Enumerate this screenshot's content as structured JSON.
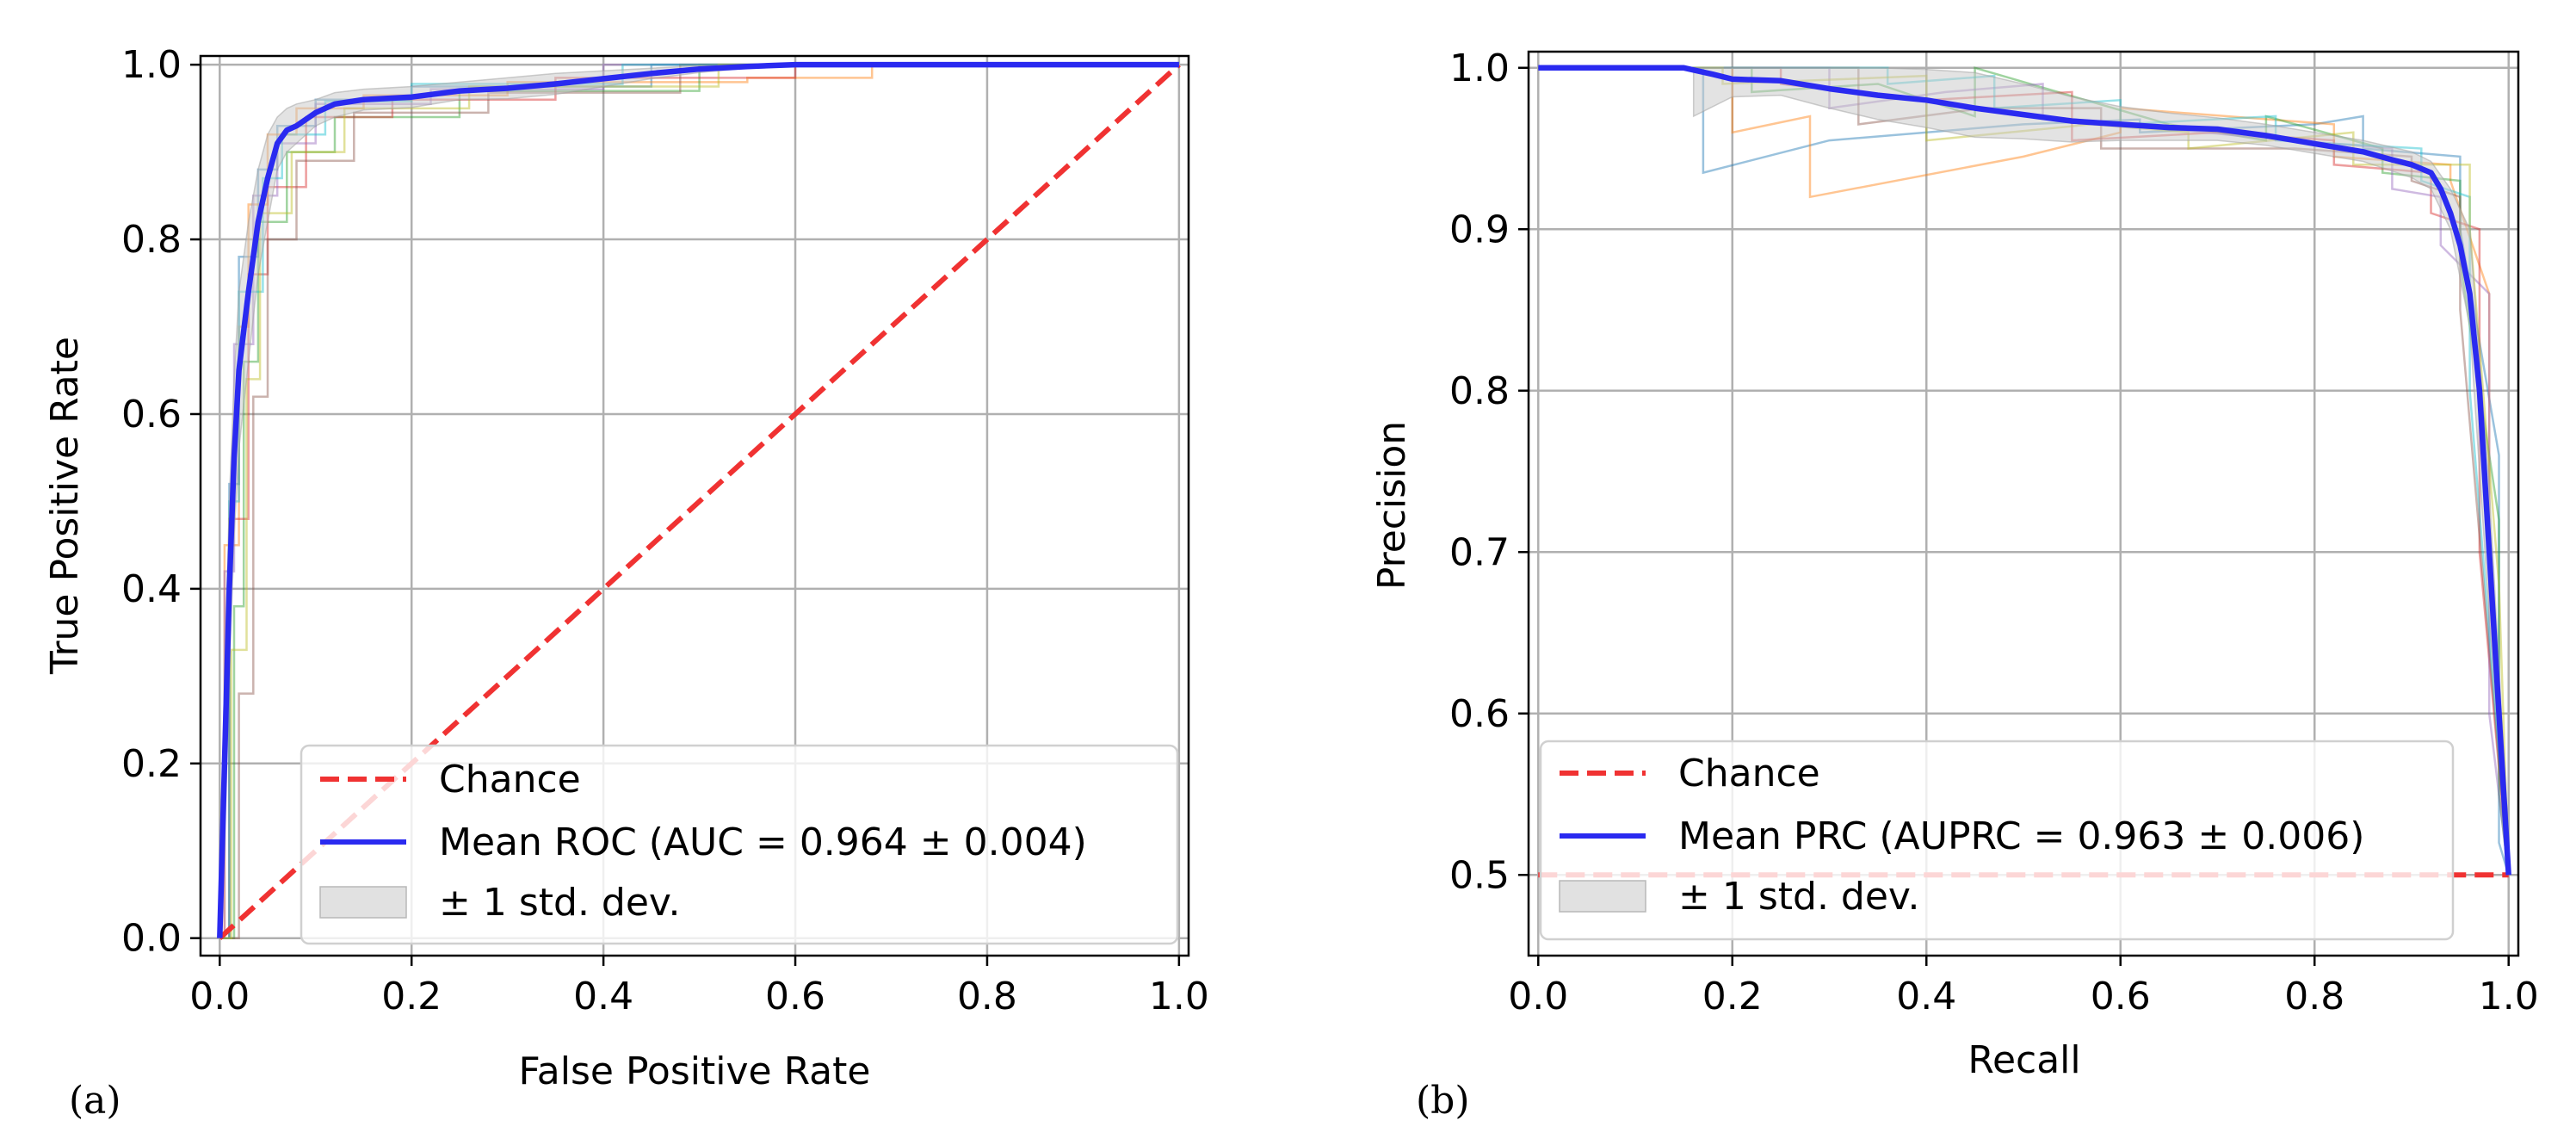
{
  "colors": {
    "chance": "#f03232",
    "mean": "#2a2af0",
    "std_fill": "#c8c8c8",
    "grid": "#b0b0b0",
    "folds": [
      "#1f77b4",
      "#ff7f0e",
      "#2ca02c",
      "#d62728",
      "#9467bd",
      "#8c564b",
      "#17becf",
      "#bcbd22"
    ]
  },
  "chart_data": [
    {
      "panel_label": "(a)",
      "type": "line",
      "title": "",
      "xlabel": "False Positive Rate",
      "ylabel": "True Positive Rate",
      "xlim": [
        -0.02,
        1.01
      ],
      "ylim": [
        -0.02,
        1.01
      ],
      "xticks": [
        0.0,
        0.2,
        0.4,
        0.6,
        0.8,
        1.0
      ],
      "xtick_labels": [
        "0.0",
        "0.2",
        "0.4",
        "0.6",
        "0.8",
        "1.0"
      ],
      "yticks": [
        0.0,
        0.2,
        0.4,
        0.6,
        0.8,
        1.0
      ],
      "ytick_labels": [
        "0.0",
        "0.2",
        "0.4",
        "0.6",
        "0.8",
        "1.0"
      ],
      "grid": true,
      "legend_position": "lower-right",
      "chance": {
        "name": "Chance",
        "x": [
          0,
          1
        ],
        "y": [
          0,
          1
        ]
      },
      "mean": {
        "name": "Mean ROC (AUC = 0.964 ± 0.004)",
        "x": [
          0,
          0.005,
          0.01,
          0.015,
          0.02,
          0.03,
          0.04,
          0.05,
          0.06,
          0.07,
          0.08,
          0.1,
          0.12,
          0.15,
          0.2,
          0.25,
          0.3,
          0.35,
          0.4,
          0.45,
          0.5,
          0.55,
          0.6,
          0.7,
          0.8,
          0.9,
          1.0
        ],
        "y": [
          0,
          0.2,
          0.4,
          0.55,
          0.65,
          0.74,
          0.82,
          0.87,
          0.91,
          0.925,
          0.93,
          0.945,
          0.955,
          0.96,
          0.963,
          0.97,
          0.973,
          0.978,
          0.984,
          0.99,
          0.995,
          0.998,
          1.0,
          1.0,
          1.0,
          1.0,
          1.0
        ]
      },
      "std": {
        "name": "± 1 std. dev.",
        "x": [
          0,
          0.005,
          0.01,
          0.015,
          0.02,
          0.03,
          0.04,
          0.05,
          0.06,
          0.07,
          0.08,
          0.1,
          0.12,
          0.15,
          0.2,
          0.25,
          0.3,
          0.35,
          0.4,
          0.45,
          0.5,
          0.55,
          0.6,
          0.7,
          0.8,
          0.9,
          1.0
        ],
        "upper": [
          0.03,
          0.3,
          0.5,
          0.64,
          0.74,
          0.82,
          0.88,
          0.92,
          0.94,
          0.95,
          0.955,
          0.96,
          0.968,
          0.972,
          0.975,
          0.98,
          0.985,
          0.99,
          0.993,
          0.996,
          0.999,
          1.0,
          1.0,
          1.0,
          1.0,
          1.0,
          1.0
        ],
        "lower": [
          0,
          0.1,
          0.3,
          0.46,
          0.56,
          0.66,
          0.76,
          0.82,
          0.88,
          0.9,
          0.91,
          0.93,
          0.94,
          0.948,
          0.951,
          0.96,
          0.961,
          0.966,
          0.975,
          0.984,
          0.991,
          0.996,
          1.0,
          1.0,
          1.0,
          1.0,
          1.0
        ]
      },
      "folds": [
        {
          "x": [
            0,
            0.01,
            0.01,
            0.02,
            0.02,
            0.04,
            0.04,
            0.06,
            0.06,
            0.1,
            0.1,
            0.2,
            0.2,
            0.45,
            0.45,
            1.0
          ],
          "y": [
            0,
            0,
            0.52,
            0.52,
            0.78,
            0.78,
            0.88,
            0.88,
            0.93,
            0.93,
            0.96,
            0.96,
            0.975,
            0.975,
            1.0,
            1.0
          ]
        },
        {
          "x": [
            0,
            0.005,
            0.005,
            0.02,
            0.02,
            0.03,
            0.03,
            0.05,
            0.05,
            0.08,
            0.08,
            0.15,
            0.15,
            0.3,
            0.3,
            0.55,
            0.55,
            0.68,
            0.68,
            1.0
          ],
          "y": [
            0,
            0,
            0.45,
            0.45,
            0.7,
            0.7,
            0.84,
            0.84,
            0.92,
            0.92,
            0.95,
            0.95,
            0.965,
            0.965,
            0.98,
            0.98,
            0.985,
            0.985,
            1.0,
            1.0
          ]
        },
        {
          "x": [
            0,
            0.015,
            0.015,
            0.025,
            0.025,
            0.04,
            0.04,
            0.07,
            0.07,
            0.12,
            0.12,
            0.25,
            0.25,
            0.5,
            0.5,
            1.0
          ],
          "y": [
            0,
            0,
            0.38,
            0.38,
            0.66,
            0.66,
            0.82,
            0.82,
            0.9,
            0.9,
            0.94,
            0.94,
            0.97,
            0.97,
            1.0,
            1.0
          ]
        },
        {
          "x": [
            0,
            0.01,
            0.01,
            0.03,
            0.03,
            0.05,
            0.05,
            0.09,
            0.09,
            0.18,
            0.18,
            0.35,
            0.35,
            0.6,
            0.6,
            1.0
          ],
          "y": [
            0,
            0,
            0.48,
            0.48,
            0.76,
            0.76,
            0.86,
            0.86,
            0.94,
            0.94,
            0.96,
            0.96,
            0.985,
            0.985,
            1.0,
            1.0
          ]
        },
        {
          "x": [
            0,
            0.005,
            0.005,
            0.015,
            0.015,
            0.035,
            0.035,
            0.06,
            0.06,
            0.1,
            0.1,
            0.22,
            0.22,
            0.4,
            0.4,
            1.0
          ],
          "y": [
            0,
            0,
            0.42,
            0.42,
            0.68,
            0.68,
            0.85,
            0.85,
            0.91,
            0.91,
            0.955,
            0.955,
            0.972,
            0.972,
            1.0,
            1.0
          ]
        },
        {
          "x": [
            0,
            0.02,
            0.02,
            0.035,
            0.035,
            0.05,
            0.05,
            0.08,
            0.08,
            0.14,
            0.14,
            0.28,
            0.28,
            0.48,
            0.48,
            1.0
          ],
          "y": [
            0,
            0,
            0.28,
            0.28,
            0.62,
            0.62,
            0.8,
            0.8,
            0.89,
            0.89,
            0.945,
            0.945,
            0.968,
            0.968,
            1.0,
            1.0
          ]
        },
        {
          "x": [
            0,
            0.01,
            0.01,
            0.02,
            0.02,
            0.045,
            0.045,
            0.065,
            0.065,
            0.11,
            0.11,
            0.2,
            0.2,
            0.42,
            0.42,
            1.0
          ],
          "y": [
            0,
            0,
            0.5,
            0.5,
            0.74,
            0.74,
            0.87,
            0.87,
            0.92,
            0.92,
            0.958,
            0.958,
            0.978,
            0.978,
            1.0,
            1.0
          ]
        },
        {
          "x": [
            0,
            0.012,
            0.012,
            0.028,
            0.028,
            0.042,
            0.042,
            0.075,
            0.075,
            0.13,
            0.13,
            0.26,
            0.26,
            0.52,
            0.52,
            1.0
          ],
          "y": [
            0,
            0,
            0.33,
            0.33,
            0.64,
            0.64,
            0.83,
            0.83,
            0.9,
            0.9,
            0.95,
            0.95,
            0.975,
            0.975,
            1.0,
            1.0
          ]
        }
      ],
      "legend": [
        "Chance",
        "Mean ROC (AUC = 0.964 ± 0.004)",
        "± 1 std. dev."
      ]
    },
    {
      "panel_label": "(b)",
      "type": "line",
      "title": "",
      "xlabel": "Recall",
      "ylabel": "Precision",
      "xlim": [
        -0.01,
        1.01
      ],
      "ylim": [
        0.45,
        1.01
      ],
      "xticks": [
        0.0,
        0.2,
        0.4,
        0.6,
        0.8,
        1.0
      ],
      "xtick_labels": [
        "0.0",
        "0.2",
        "0.4",
        "0.6",
        "0.8",
        "1.0"
      ],
      "yticks": [
        0.5,
        0.6,
        0.7,
        0.8,
        0.9,
        1.0
      ],
      "ytick_labels": [
        "0.5",
        "0.6",
        "0.7",
        "0.8",
        "0.9",
        "1.0"
      ],
      "grid": true,
      "legend_position": "lower-right",
      "chance": {
        "name": "Chance",
        "x": [
          0,
          1
        ],
        "y": [
          0.5,
          0.5
        ]
      },
      "mean": {
        "name": "Mean PRC (AUPRC = 0.963 ± 0.006)",
        "x": [
          0,
          0.05,
          0.1,
          0.15,
          0.18,
          0.2,
          0.25,
          0.3,
          0.35,
          0.4,
          0.45,
          0.5,
          0.55,
          0.6,
          0.65,
          0.7,
          0.75,
          0.8,
          0.85,
          0.88,
          0.9,
          0.92,
          0.93,
          0.94,
          0.95,
          0.96,
          0.97,
          0.98,
          0.99,
          1.0
        ],
        "y": [
          1.0,
          1.0,
          1.0,
          1.0,
          0.996,
          0.993,
          0.992,
          0.987,
          0.983,
          0.98,
          0.975,
          0.971,
          0.967,
          0.965,
          0.963,
          0.962,
          0.958,
          0.953,
          0.948,
          0.943,
          0.94,
          0.935,
          0.925,
          0.91,
          0.89,
          0.86,
          0.8,
          0.7,
          0.6,
          0.5
        ]
      },
      "std": {
        "name": "± 1 std. dev.",
        "x": [
          0.16,
          0.2,
          0.25,
          0.3,
          0.35,
          0.4,
          0.45,
          0.5,
          0.55,
          0.6,
          0.65,
          0.7,
          0.75,
          0.8,
          0.85,
          0.9,
          0.92,
          0.94,
          0.96,
          0.98,
          1.0
        ],
        "upper": [
          1.0,
          1.0,
          1.0,
          1.0,
          1.0,
          0.999,
          0.997,
          0.99,
          0.982,
          0.976,
          0.972,
          0.969,
          0.965,
          0.96,
          0.955,
          0.948,
          0.942,
          0.925,
          0.9,
          0.74,
          0.52
        ],
        "lower": [
          0.97,
          0.982,
          0.983,
          0.975,
          0.968,
          0.963,
          0.957,
          0.956,
          0.954,
          0.955,
          0.955,
          0.955,
          0.952,
          0.947,
          0.942,
          0.932,
          0.925,
          0.9,
          0.84,
          0.66,
          0.5
        ]
      },
      "folds": [
        {
          "x": [
            0,
            0.17,
            0.17,
            0.3,
            0.5,
            0.62,
            0.62,
            0.8,
            0.85,
            0.85,
            0.95,
            0.95,
            0.99,
            0.99,
            1.0
          ],
          "y": [
            1.0,
            1.0,
            0.935,
            0.955,
            0.965,
            0.968,
            0.96,
            0.965,
            0.97,
            0.95,
            0.945,
            0.9,
            0.76,
            0.52,
            0.5
          ]
        },
        {
          "x": [
            0,
            0.2,
            0.2,
            0.28,
            0.28,
            0.5,
            0.6,
            0.6,
            0.82,
            0.82,
            0.94,
            0.94,
            0.98,
            0.98,
            1.0
          ],
          "y": [
            1.0,
            1.0,
            0.96,
            0.97,
            0.92,
            0.945,
            0.96,
            0.975,
            0.965,
            0.945,
            0.94,
            0.93,
            0.86,
            0.68,
            0.5
          ]
        },
        {
          "x": [
            0,
            0.22,
            0.22,
            0.35,
            0.45,
            0.45,
            0.65,
            0.75,
            0.75,
            0.87,
            0.87,
            0.95,
            0.95,
            0.99,
            0.99,
            1.0
          ],
          "y": [
            1.0,
            1.0,
            0.985,
            0.99,
            0.97,
            1.0,
            0.965,
            0.955,
            0.97,
            0.95,
            0.935,
            0.93,
            0.88,
            0.72,
            0.55,
            0.5
          ]
        },
        {
          "x": [
            0,
            0.25,
            0.25,
            0.4,
            0.55,
            0.55,
            0.7,
            0.82,
            0.82,
            0.92,
            0.92,
            0.97,
            0.97,
            1.0
          ],
          "y": [
            1.0,
            1.0,
            0.99,
            0.98,
            0.985,
            0.955,
            0.96,
            0.955,
            0.94,
            0.935,
            0.91,
            0.9,
            0.7,
            0.5
          ]
        },
        {
          "x": [
            0,
            0.3,
            0.3,
            0.42,
            0.52,
            0.52,
            0.72,
            0.88,
            0.88,
            0.93,
            0.93,
            0.98,
            0.98,
            1.0
          ],
          "y": [
            1.0,
            1.0,
            0.975,
            0.985,
            0.99,
            0.97,
            0.958,
            0.95,
            0.925,
            0.92,
            0.89,
            0.86,
            0.6,
            0.5
          ]
        },
        {
          "x": [
            0,
            0.33,
            0.33,
            0.46,
            0.58,
            0.58,
            0.78,
            0.9,
            0.9,
            0.95,
            0.95,
            1.0
          ],
          "y": [
            1.0,
            1.0,
            0.965,
            0.975,
            0.975,
            0.95,
            0.95,
            0.945,
            0.93,
            0.92,
            0.85,
            0.5
          ]
        },
        {
          "x": [
            0,
            0.36,
            0.36,
            0.47,
            0.47,
            0.6,
            0.6,
            0.76,
            0.76,
            0.91,
            0.91,
            0.96,
            0.96,
            1.0
          ],
          "y": [
            1.0,
            1.0,
            0.99,
            0.995,
            0.975,
            0.98,
            0.965,
            0.97,
            0.955,
            0.95,
            0.93,
            0.92,
            0.8,
            0.5
          ]
        },
        {
          "x": [
            0,
            0.19,
            0.19,
            0.4,
            0.4,
            0.57,
            0.67,
            0.67,
            0.84,
            0.84,
            0.96,
            0.96,
            0.99,
            1.0
          ],
          "y": [
            1.0,
            1.0,
            0.99,
            0.995,
            0.955,
            0.965,
            0.96,
            0.95,
            0.96,
            0.94,
            0.94,
            0.9,
            0.68,
            0.5
          ]
        }
      ],
      "legend": [
        "Chance",
        "Mean PRC (AUPRC = 0.963 ± 0.006)",
        "± 1 std. dev."
      ]
    }
  ]
}
